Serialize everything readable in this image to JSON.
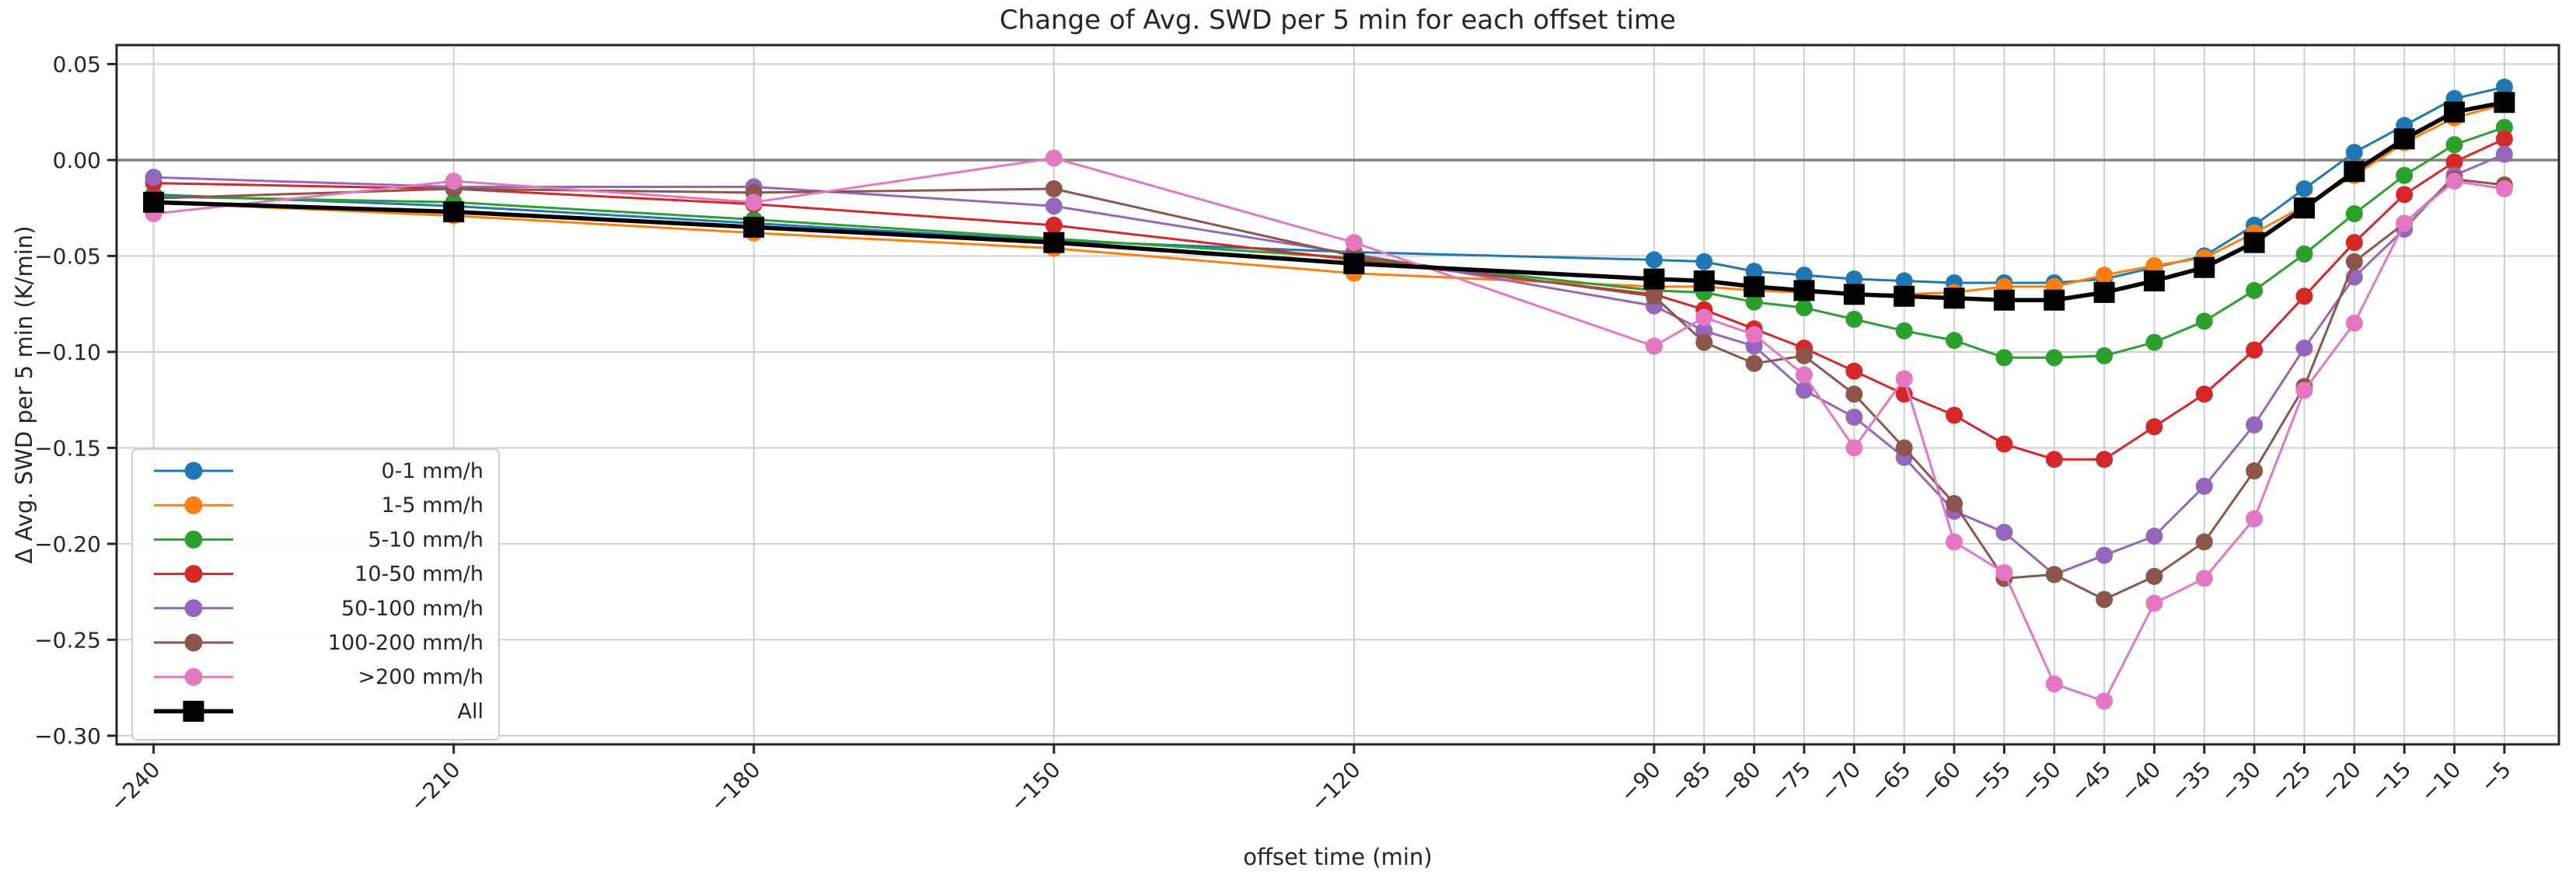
{
  "chart_data": {
    "type": "line",
    "title": "Change of Avg. SWD per 5 min for each offset time",
    "xlabel": "offset time (min)",
    "ylabel": "Δ Avg. SWD per 5 min (K/min)",
    "grid": true,
    "zero_line": true,
    "legend_position": "lower left",
    "xlim": [
      -243.7,
      0.45
    ],
    "ylim": [
      -0.3045,
      0.0599
    ],
    "x": [
      -240,
      -210,
      -180,
      -150,
      -120,
      -90,
      -85,
      -80,
      -75,
      -70,
      -65,
      -60,
      -55,
      -50,
      -45,
      -40,
      -35,
      -30,
      -25,
      -20,
      -15,
      -10,
      -5
    ],
    "xtick_labels": [
      "−240",
      "−210",
      "−180",
      "−150",
      "−120",
      "−90",
      "−85",
      "−80",
      "−75",
      "−70",
      "−65",
      "−60",
      "−55",
      "−50",
      "−45",
      "−40",
      "−35",
      "−30",
      "−25",
      "−20",
      "−15",
      "−10",
      "−5"
    ],
    "ytick_values": [
      0.05,
      0.0,
      -0.05,
      -0.1,
      -0.15,
      -0.2,
      -0.25,
      -0.3
    ],
    "ytick_labels": [
      "0.05",
      "0.00",
      "−0.05",
      "−0.10",
      "−0.15",
      "−0.20",
      "−0.25",
      "−0.30"
    ],
    "series": [
      {
        "name": "0-1 mm/h",
        "color": "#1f77b4",
        "marker": "circle",
        "values": [
          -0.018,
          -0.024,
          -0.033,
          -0.042,
          -0.048,
          -0.052,
          -0.053,
          -0.058,
          -0.06,
          -0.062,
          -0.063,
          -0.064,
          -0.064,
          -0.064,
          -0.062,
          -0.056,
          -0.05,
          -0.034,
          -0.015,
          0.004,
          0.018,
          0.032,
          0.038
        ]
      },
      {
        "name": "1-5 mm/h",
        "color": "#ff7f0e",
        "marker": "circle",
        "values": [
          -0.022,
          -0.029,
          -0.038,
          -0.046,
          -0.059,
          -0.066,
          -0.066,
          -0.068,
          -0.069,
          -0.07,
          -0.07,
          -0.069,
          -0.066,
          -0.066,
          -0.06,
          -0.055,
          -0.051,
          -0.038,
          -0.024,
          -0.008,
          0.009,
          0.022,
          0.029
        ]
      },
      {
        "name": "5-10 mm/h",
        "color": "#2ca02c",
        "marker": "circle",
        "values": [
          -0.019,
          -0.022,
          -0.031,
          -0.041,
          -0.051,
          -0.068,
          -0.069,
          -0.074,
          -0.077,
          -0.083,
          -0.089,
          -0.094,
          -0.103,
          -0.103,
          -0.102,
          -0.095,
          -0.084,
          -0.068,
          -0.049,
          -0.028,
          -0.008,
          0.008,
          0.017
        ]
      },
      {
        "name": "10-50 mm/h",
        "color": "#d62728",
        "marker": "circle",
        "values": [
          -0.012,
          -0.015,
          -0.023,
          -0.034,
          -0.052,
          -0.07,
          -0.078,
          -0.088,
          -0.098,
          -0.11,
          -0.122,
          -0.133,
          -0.148,
          -0.156,
          -0.156,
          -0.139,
          -0.122,
          -0.099,
          -0.071,
          -0.043,
          -0.018,
          -0.001,
          0.011
        ]
      },
      {
        "name": "50-100 mm/h",
        "color": "#9467bd",
        "marker": "circle",
        "values": [
          -0.009,
          -0.014,
          -0.014,
          -0.024,
          -0.049,
          -0.076,
          -0.089,
          -0.097,
          -0.12,
          -0.134,
          -0.155,
          -0.183,
          -0.194,
          -0.216,
          -0.206,
          -0.196,
          -0.17,
          -0.138,
          -0.098,
          -0.061,
          -0.036,
          -0.008,
          0.003
        ]
      },
      {
        "name": "100-200 mm/h",
        "color": "#8c564b",
        "marker": "circle",
        "values": [
          -0.02,
          -0.015,
          -0.017,
          -0.015,
          -0.05,
          -0.071,
          -0.095,
          -0.106,
          -0.102,
          -0.122,
          -0.15,
          -0.179,
          -0.218,
          -0.216,
          -0.229,
          -0.217,
          -0.199,
          -0.162,
          -0.118,
          -0.053,
          -0.033,
          -0.01,
          -0.013
        ]
      },
      {
        "name": ">200 mm/h",
        "color": "#e377c2",
        "marker": "circle",
        "values": [
          -0.028,
          -0.011,
          -0.022,
          0.001,
          -0.043,
          -0.097,
          -0.082,
          -0.091,
          -0.112,
          -0.15,
          -0.114,
          -0.199,
          -0.215,
          -0.273,
          -0.282,
          -0.231,
          -0.218,
          -0.187,
          -0.12,
          -0.085,
          -0.033,
          -0.011,
          -0.015
        ]
      },
      {
        "name": "All",
        "color": "#000000",
        "marker": "square",
        "values": [
          -0.022,
          -0.027,
          -0.035,
          -0.043,
          -0.054,
          -0.062,
          -0.063,
          -0.066,
          -0.068,
          -0.07,
          -0.071,
          -0.072,
          -0.073,
          -0.073,
          -0.069,
          -0.063,
          -0.056,
          -0.043,
          -0.025,
          -0.006,
          0.011,
          0.025,
          0.03
        ]
      }
    ]
  },
  "colors": {
    "grid": "#cccccc",
    "zero_line": "#848484",
    "spine": "#262626",
    "text": "#262626",
    "legend_border": "#cccccc",
    "legend_bg": "#ffffff"
  }
}
